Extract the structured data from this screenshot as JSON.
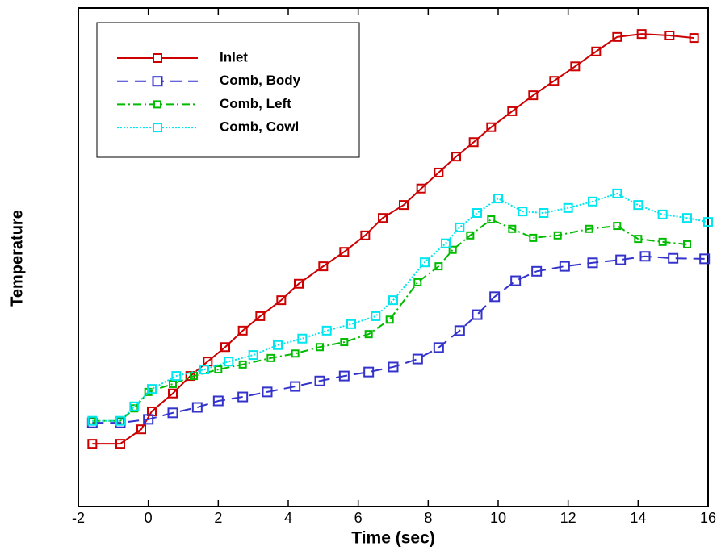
{
  "chart_data": {
    "type": "line",
    "x_label": "Time (sec)",
    "y_label": "Temperature",
    "xlim": [
      -2,
      16
    ],
    "xticks": [
      -2,
      0,
      2,
      4,
      6,
      8,
      10,
      12,
      14,
      16
    ],
    "ylim": [
      0,
      100
    ],
    "legend": "upper left",
    "series": [
      {
        "name": "Inlet",
        "color": "#cc0000",
        "line_style": "solid",
        "x": [
          -1.6,
          -0.8,
          -0.2,
          0.1,
          0.7,
          1.2,
          1.7,
          2.2,
          2.7,
          3.2,
          3.8,
          4.3,
          5.0,
          5.6,
          6.2,
          6.7,
          7.3,
          7.8,
          8.3,
          8.8,
          9.3,
          9.8,
          10.4,
          11.0,
          11.6,
          12.2,
          12.8,
          13.4,
          14.1,
          14.9,
          15.6
        ],
        "values": [
          12.6,
          12.6,
          15.5,
          19.1,
          22.7,
          26.2,
          29.1,
          32.0,
          35.3,
          38.2,
          41.4,
          44.7,
          48.2,
          51.1,
          54.4,
          57.9,
          60.5,
          63.8,
          67.0,
          70.2,
          73.1,
          76.1,
          79.3,
          82.5,
          85.4,
          88.3,
          91.3,
          94.2,
          94.8,
          94.5,
          94.0
        ]
      },
      {
        "name": "Comb, Body",
        "color": "#3333cc",
        "line_style": "dashed",
        "x": [
          -1.6,
          -0.8,
          0.0,
          0.7,
          1.4,
          2.0,
          2.7,
          3.4,
          4.2,
          4.9,
          5.6,
          6.3,
          7.0,
          7.7,
          8.3,
          8.9,
          9.4,
          9.9,
          10.5,
          11.1,
          11.9,
          12.7,
          13.5,
          14.2,
          15.0,
          15.9
        ],
        "values": [
          16.8,
          16.8,
          17.5,
          18.8,
          19.9,
          21.2,
          22.0,
          23.0,
          24.1,
          25.2,
          26.2,
          27.0,
          28.0,
          29.6,
          31.9,
          35.3,
          38.5,
          42.1,
          45.3,
          47.2,
          48.2,
          48.9,
          49.5,
          50.2,
          49.8,
          49.7
        ]
      },
      {
        "name": "Comb, Left",
        "color": "#00bb00",
        "line_style": "dashdot",
        "x": [
          -1.6,
          -0.8,
          -0.4,
          0.0,
          0.7,
          1.3,
          2.0,
          2.7,
          3.5,
          4.2,
          4.9,
          5.6,
          6.3,
          6.9,
          7.7,
          8.3,
          8.7,
          9.2,
          9.8,
          10.4,
          11.0,
          11.7,
          12.6,
          13.4,
          14.0,
          14.7,
          15.4
        ],
        "values": [
          17.2,
          17.2,
          19.7,
          23.0,
          24.6,
          26.2,
          27.5,
          28.5,
          29.8,
          30.7,
          32.0,
          33.0,
          34.6,
          37.5,
          45.0,
          48.2,
          51.5,
          54.4,
          57.6,
          55.7,
          53.9,
          54.4,
          55.7,
          56.3,
          53.7,
          53.1,
          52.6
        ]
      },
      {
        "name": "Comb, Cowl",
        "color": "#00e5ee",
        "line_style": "dotted",
        "x": [
          -1.6,
          -0.8,
          -0.4,
          0.1,
          0.8,
          1.6,
          2.3,
          3.0,
          3.7,
          4.4,
          5.1,
          5.8,
          6.5,
          7.0,
          7.9,
          8.5,
          8.9,
          9.4,
          10.0,
          10.7,
          11.3,
          12.0,
          12.7,
          13.4,
          14.0,
          14.7,
          15.4,
          16.0
        ],
        "values": [
          17.2,
          17.2,
          20.1,
          23.6,
          26.2,
          27.5,
          29.1,
          30.4,
          32.4,
          33.7,
          35.3,
          36.6,
          38.2,
          41.4,
          49.0,
          52.8,
          56.0,
          58.9,
          61.8,
          59.2,
          58.9,
          59.9,
          61.2,
          62.8,
          60.5,
          58.6,
          57.9,
          57.1
        ]
      }
    ]
  }
}
